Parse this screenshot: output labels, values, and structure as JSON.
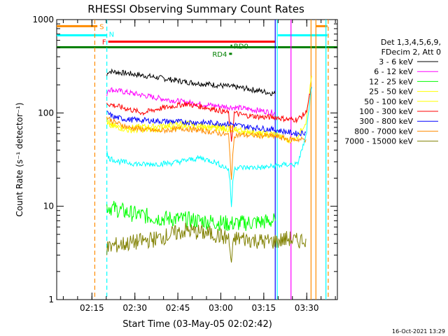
{
  "chart_data": {
    "type": "line",
    "title": "RHESSI Observing Summary Count Rates",
    "xlabel": "Start Time (03-May-05 02:02:42)",
    "ylabel": "Count Rate (s⁻¹ detector⁻¹)",
    "yscale": "log",
    "ylim": [
      1,
      1000
    ],
    "xlim_minutes": [
      0,
      98
    ],
    "x_ticks": [
      {
        "label": "02:15",
        "min": 12.3
      },
      {
        "label": "02:30",
        "min": 27.3
      },
      {
        "label": "02:45",
        "min": 42.3
      },
      {
        "label": "03:00",
        "min": 57.3
      },
      {
        "label": "03:15",
        "min": 72.3
      },
      {
        "label": "03:30",
        "min": 87.3
      }
    ],
    "y_ticks": [
      {
        "label": "1",
        "value": 1
      },
      {
        "label": "10",
        "value": 10
      },
      {
        "label": "100",
        "value": 100
      },
      {
        "label": "1000",
        "value": 1000
      }
    ],
    "legend": {
      "header_line1": "Det 1,3,4,5,6,9,",
      "header_line2": "FDecim 2, Att 0",
      "placement": "right"
    },
    "series": [
      {
        "name": "3 - 6 keV",
        "color": "#000000",
        "x": [
          17.5,
          18,
          25,
          35,
          45,
          55,
          65,
          72,
          76.3
        ],
        "y": [
          250,
          280,
          265,
          240,
          215,
          200,
          185,
          170,
          160
        ]
      },
      {
        "name": "6 - 12 keV",
        "color": "#ff00ff",
        "x": [
          17.5,
          18,
          25,
          35,
          45,
          55,
          65,
          72,
          76.3
        ],
        "y": [
          160,
          180,
          165,
          145,
          130,
          120,
          112,
          105,
          100
        ]
      },
      {
        "name": "12 - 25 keV",
        "color": "#00ff00",
        "x": [
          17.5,
          25,
          35,
          45,
          55,
          60,
          65,
          72,
          76.3
        ],
        "y": [
          10,
          8.5,
          7.5,
          7.2,
          6.8,
          6.5,
          6.6,
          6.8,
          7
        ]
      },
      {
        "name": "25 - 50 keV",
        "color": "#ffff00",
        "x": [
          17.5,
          18,
          25,
          35,
          45,
          55,
          61,
          65,
          72,
          76.3,
          81,
          84,
          87,
          89
        ],
        "y": [
          85,
          75,
          70,
          72,
          78,
          70,
          70,
          65,
          60,
          60,
          50,
          55,
          80,
          250
        ]
      },
      {
        "name": "50 - 100 keV",
        "color": "#ffff00",
        "x": [
          17.5,
          20,
          25,
          35,
          45,
          55,
          61,
          65,
          72,
          76.3
        ],
        "y": [
          80,
          72,
          65,
          66,
          72,
          68,
          66,
          62,
          58,
          57
        ]
      },
      {
        "name": "100 - 300 keV",
        "color": "#ff0000",
        "x": [
          17.5,
          18,
          25,
          30,
          35,
          45,
          55,
          60,
          61,
          62,
          65,
          72,
          76.3,
          81,
          84,
          87,
          89
        ],
        "y": [
          130,
          125,
          110,
          100,
          110,
          125,
          110,
          100,
          50,
          100,
          95,
          90,
          90,
          85,
          85,
          100,
          190
        ]
      },
      {
        "name": "300 - 800 keV",
        "color": "#0000ff",
        "x": [
          17.5,
          20,
          25,
          35,
          45,
          55,
          61,
          65,
          72,
          76.3,
          81,
          84,
          87
        ],
        "y": [
          100,
          90,
          85,
          82,
          80,
          78,
          76,
          72,
          68,
          66,
          62,
          60,
          62
        ]
      },
      {
        "name": "800 - 7000 keV",
        "color": "#ff8c00",
        "x": [
          17.5,
          20,
          25,
          35,
          45,
          55,
          60,
          61,
          62,
          65,
          72,
          76.3,
          81,
          84,
          87
        ],
        "y": [
          90,
          80,
          70,
          64,
          68,
          62,
          58,
          20,
          58,
          58,
          57,
          56,
          52,
          52,
          52
        ]
      },
      {
        "name": "7000 - 15000 keV",
        "color": "#808000",
        "x": [
          17.5,
          20,
          25,
          35,
          45,
          55,
          60,
          61,
          62,
          65,
          72,
          76.3,
          81,
          84,
          87
        ],
        "y": [
          3.5,
          3.8,
          4,
          4.5,
          5.5,
          5,
          4.5,
          2.5,
          4.5,
          4.5,
          4.2,
          4.2,
          4.5,
          4.2,
          4.5
        ]
      },
      {
        "name": "",
        "color": "#00ffff",
        "x": [
          17.5,
          18,
          22,
          30,
          40,
          50,
          55,
          60,
          60.5,
          61,
          61.5,
          62,
          65,
          72,
          76.3,
          80,
          84,
          87,
          89
        ],
        "y": [
          38,
          33,
          30,
          28,
          29,
          33,
          30,
          25,
          18,
          10,
          18,
          26,
          26,
          26,
          27,
          28,
          28,
          55,
          190
        ]
      }
    ],
    "flag_bars": [
      {
        "label": "S",
        "color": "#ff8c00",
        "segments": [
          [
            0,
            14.2
          ],
          [
            90.5,
            94.5
          ]
        ],
        "value": 850
      },
      {
        "label": "N",
        "color": "#00ffff",
        "segments": [
          [
            0,
            17.5
          ],
          [
            77.2,
            94.5
          ]
        ],
        "value": 680
      },
      {
        "label": "F",
        "color": "#ff0000",
        "segments": [
          [
            18,
            76.3
          ]
        ],
        "value": 580
      },
      {
        "label": "RD0",
        "color": "#008000",
        "segments": [
          [
            60.7,
            61.3
          ]
        ],
        "value": 525
      },
      {
        "label": "RD4",
        "color": "#008000",
        "segments": [
          [
            60.2,
            61.2
          ]
        ],
        "value": 430
      },
      {
        "label": "",
        "color": "#008000",
        "segments": [
          [
            0,
            98
          ]
        ],
        "value": 505
      }
    ],
    "vertical_lines": [
      {
        "min": 13.3,
        "color": "#ff8c00",
        "style": "dashed"
      },
      {
        "min": 17.5,
        "color": "#00ffff",
        "style": "dashed"
      },
      {
        "min": 76.3,
        "color": "#0000ff",
        "style": "solid"
      },
      {
        "min": 77.0,
        "color": "#00ffff",
        "style": "solid"
      },
      {
        "min": 81.8,
        "color": "#ff00ff",
        "style": "solid"
      },
      {
        "min": 88.8,
        "color": "#ff8c00",
        "style": "solid"
      },
      {
        "min": 90.5,
        "color": "#ff8c00",
        "style": "solid"
      },
      {
        "min": 94.0,
        "color": "#00ffff",
        "style": "solid"
      },
      {
        "min": 94.8,
        "color": "#ff8c00",
        "style": "dashed"
      }
    ]
  },
  "footer": {
    "timestamp": "16-Oct-2021 13:29"
  }
}
